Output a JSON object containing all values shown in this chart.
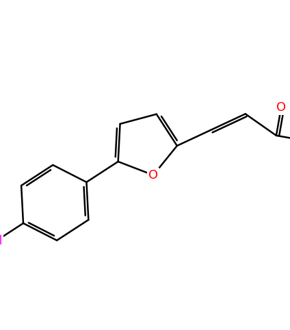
{
  "background_color": "#ffffff",
  "atom_colors": {
    "C": "#000000",
    "O": "#ff0000",
    "Cl": "#ff00ff"
  },
  "bond_color": "#000000",
  "bond_width": 1.8,
  "figsize": [
    4.24,
    4.82
  ],
  "dpi": 100,
  "xlim": [
    0,
    10
  ],
  "ylim": [
    0,
    11.36
  ],
  "label_fontsize": 13
}
